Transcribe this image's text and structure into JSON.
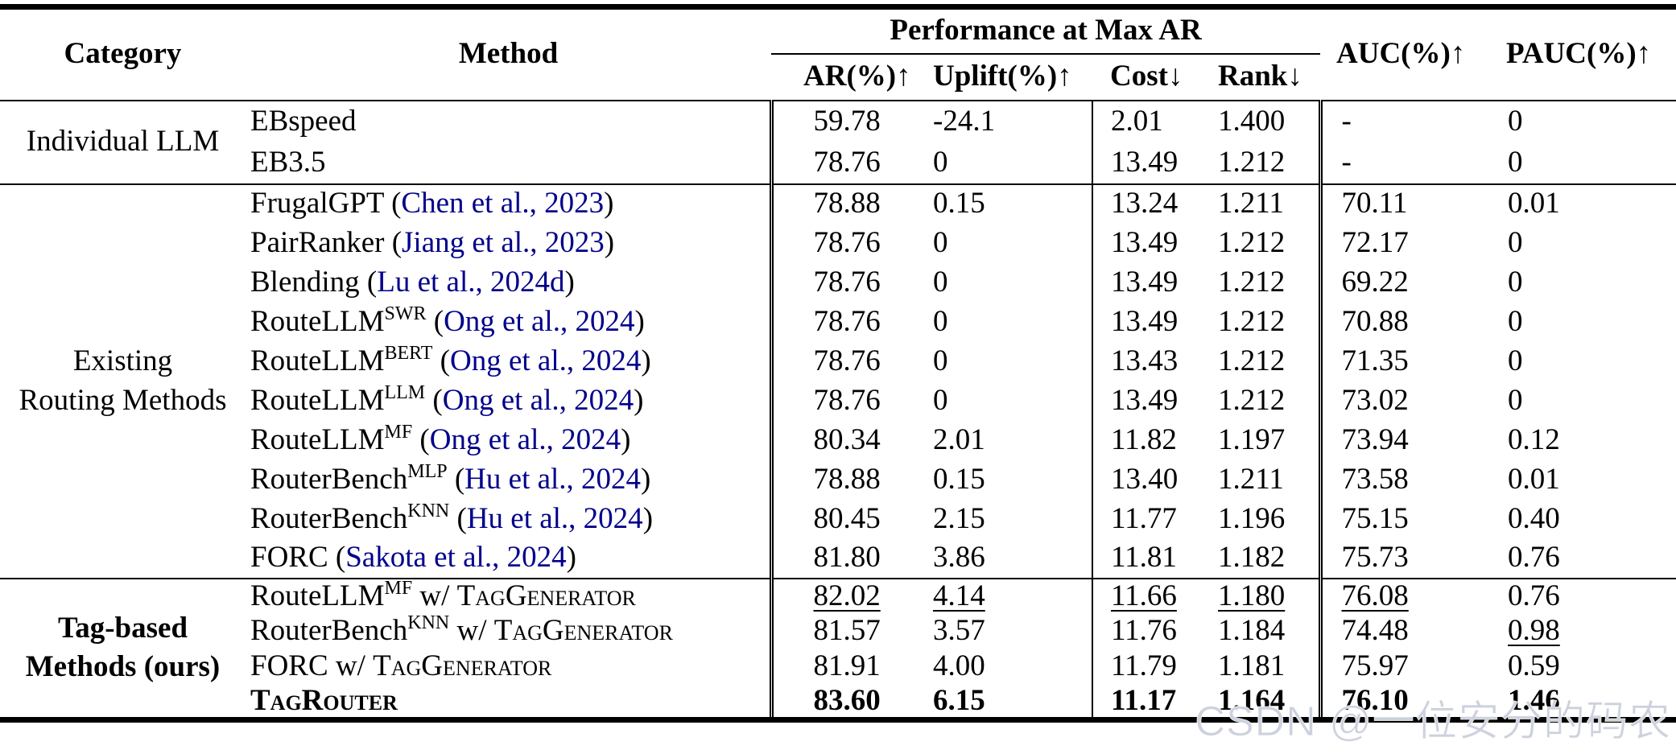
{
  "header": {
    "category": "Category",
    "method": "Method",
    "perf_group": "Performance at Max AR",
    "subcols": [
      "AR(%)↑",
      "Uplift(%)↑",
      "Cost↓",
      "Rank↓"
    ],
    "auc": "AUC(%)↑",
    "pauc": "PAUC(%)↑"
  },
  "colors": {
    "citation": "#00008B",
    "watermark": "#ccd1dd"
  },
  "watermark": "CSDN @一位安分的码农",
  "sections": [
    {
      "category_lines": [
        "Individual LLM"
      ],
      "category_bold": false,
      "rows": [
        {
          "method": [
            {
              "t": "EBspeed"
            }
          ],
          "values": [
            {
              "v": "59.78"
            },
            {
              "v": "-24.1"
            },
            {
              "v": "2.01"
            },
            {
              "v": "1.400"
            },
            {
              "v": "-"
            },
            {
              "v": "0"
            }
          ]
        },
        {
          "method": [
            {
              "t": "EB3.5"
            }
          ],
          "values": [
            {
              "v": "78.76"
            },
            {
              "v": "0"
            },
            {
              "v": "13.49"
            },
            {
              "v": "1.212"
            },
            {
              "v": "-"
            },
            {
              "v": "0"
            }
          ]
        }
      ]
    },
    {
      "category_lines": [
        "Existing",
        "Routing Methods"
      ],
      "category_bold": false,
      "rows": [
        {
          "method": [
            {
              "t": "FrugalGPT ("
            },
            {
              "t": "Chen et al., 2023",
              "s": "cite"
            },
            {
              "t": ")"
            }
          ],
          "values": [
            {
              "v": "78.88"
            },
            {
              "v": "0.15"
            },
            {
              "v": "13.24"
            },
            {
              "v": "1.211"
            },
            {
              "v": "70.11"
            },
            {
              "v": "0.01"
            }
          ]
        },
        {
          "method": [
            {
              "t": "PairRanker ("
            },
            {
              "t": "Jiang et al., 2023",
              "s": "cite"
            },
            {
              "t": ")"
            }
          ],
          "values": [
            {
              "v": "78.76"
            },
            {
              "v": "0"
            },
            {
              "v": "13.49"
            },
            {
              "v": "1.212"
            },
            {
              "v": "72.17"
            },
            {
              "v": "0"
            }
          ]
        },
        {
          "method": [
            {
              "t": "Blending ("
            },
            {
              "t": "Lu et al., 2024d",
              "s": "cite"
            },
            {
              "t": ")"
            }
          ],
          "values": [
            {
              "v": "78.76"
            },
            {
              "v": "0"
            },
            {
              "v": "13.49"
            },
            {
              "v": "1.212"
            },
            {
              "v": "69.22"
            },
            {
              "v": "0"
            }
          ]
        },
        {
          "method": [
            {
              "t": "RouteLLM"
            },
            {
              "t": "SWR",
              "s": "sup"
            },
            {
              "t": " ("
            },
            {
              "t": "Ong et al., 2024",
              "s": "cite"
            },
            {
              "t": ")"
            }
          ],
          "values": [
            {
              "v": "78.76"
            },
            {
              "v": "0"
            },
            {
              "v": "13.49"
            },
            {
              "v": "1.212"
            },
            {
              "v": "70.88"
            },
            {
              "v": "0"
            }
          ]
        },
        {
          "method": [
            {
              "t": "RouteLLM"
            },
            {
              "t": "BERT",
              "s": "sup"
            },
            {
              "t": " ("
            },
            {
              "t": "Ong et al., 2024",
              "s": "cite"
            },
            {
              "t": ")"
            }
          ],
          "values": [
            {
              "v": "78.76"
            },
            {
              "v": "0"
            },
            {
              "v": "13.43"
            },
            {
              "v": "1.212"
            },
            {
              "v": "71.35"
            },
            {
              "v": "0"
            }
          ]
        },
        {
          "method": [
            {
              "t": "RouteLLM"
            },
            {
              "t": "LLM",
              "s": "sup"
            },
            {
              "t": " ("
            },
            {
              "t": "Ong et al., 2024",
              "s": "cite"
            },
            {
              "t": ")"
            }
          ],
          "values": [
            {
              "v": "78.76"
            },
            {
              "v": "0"
            },
            {
              "v": "13.49"
            },
            {
              "v": "1.212"
            },
            {
              "v": "73.02"
            },
            {
              "v": "0"
            }
          ]
        },
        {
          "method": [
            {
              "t": "RouteLLM"
            },
            {
              "t": "MF",
              "s": "sup"
            },
            {
              "t": " ("
            },
            {
              "t": "Ong et al., 2024",
              "s": "cite"
            },
            {
              "t": ")"
            }
          ],
          "values": [
            {
              "v": "80.34"
            },
            {
              "v": "2.01"
            },
            {
              "v": "11.82"
            },
            {
              "v": "1.197"
            },
            {
              "v": "73.94"
            },
            {
              "v": "0.12"
            }
          ]
        },
        {
          "method": [
            {
              "t": "RouterBench"
            },
            {
              "t": "MLP",
              "s": "sup"
            },
            {
              "t": " ("
            },
            {
              "t": "Hu et al., 2024",
              "s": "cite"
            },
            {
              "t": ")"
            }
          ],
          "values": [
            {
              "v": "78.88"
            },
            {
              "v": "0.15"
            },
            {
              "v": "13.40"
            },
            {
              "v": "1.211"
            },
            {
              "v": "73.58"
            },
            {
              "v": "0.01"
            }
          ]
        },
        {
          "method": [
            {
              "t": "RouterBench"
            },
            {
              "t": "KNN",
              "s": "sup"
            },
            {
              "t": " ("
            },
            {
              "t": "Hu et al., 2024",
              "s": "cite"
            },
            {
              "t": ")"
            }
          ],
          "values": [
            {
              "v": "80.45"
            },
            {
              "v": "2.15"
            },
            {
              "v": "11.77"
            },
            {
              "v": "1.196"
            },
            {
              "v": "75.15"
            },
            {
              "v": "0.40"
            }
          ]
        },
        {
          "method": [
            {
              "t": "FORC ("
            },
            {
              "t": "Sakota et al., 2024",
              "s": "cite"
            },
            {
              "t": ")"
            }
          ],
          "values": [
            {
              "v": "81.80"
            },
            {
              "v": "3.86"
            },
            {
              "v": "11.81"
            },
            {
              "v": "1.182"
            },
            {
              "v": "75.73"
            },
            {
              "v": "0.76"
            }
          ]
        }
      ]
    },
    {
      "category_lines": [
        "Tag-based",
        "Methods (ours)"
      ],
      "category_bold": true,
      "rows": [
        {
          "method": [
            {
              "t": "RouteLLM"
            },
            {
              "t": "MF",
              "s": "sup"
            },
            {
              "t": " w/ "
            },
            {
              "t": "TagGenerator",
              "s": "sc"
            }
          ],
          "values": [
            {
              "v": "82.02",
              "u": true
            },
            {
              "v": "4.14",
              "u": true
            },
            {
              "v": "11.66",
              "u": true
            },
            {
              "v": "1.180",
              "u": true
            },
            {
              "v": "76.08",
              "u": true
            },
            {
              "v": "0.76"
            }
          ]
        },
        {
          "method": [
            {
              "t": "RouterBench"
            },
            {
              "t": "KNN",
              "s": "sup"
            },
            {
              "t": " w/ "
            },
            {
              "t": "TagGenerator",
              "s": "sc"
            }
          ],
          "values": [
            {
              "v": "81.57"
            },
            {
              "v": "3.57"
            },
            {
              "v": "11.76"
            },
            {
              "v": "1.184"
            },
            {
              "v": "74.48"
            },
            {
              "v": "0.98",
              "u": true
            }
          ]
        },
        {
          "method": [
            {
              "t": "FORC w/ "
            },
            {
              "t": "TagGenerator",
              "s": "sc"
            }
          ],
          "values": [
            {
              "v": "81.91"
            },
            {
              "v": "4.00"
            },
            {
              "v": "11.79"
            },
            {
              "v": "1.181"
            },
            {
              "v": "75.97"
            },
            {
              "v": "0.59"
            }
          ]
        },
        {
          "method": [
            {
              "t": "TagRouter",
              "s": "scb"
            }
          ],
          "values": [
            {
              "v": "83.60",
              "b": true
            },
            {
              "v": "6.15",
              "b": true
            },
            {
              "v": "11.17",
              "b": true
            },
            {
              "v": "1.164",
              "b": true
            },
            {
              "v": "76.10",
              "b": true
            },
            {
              "v": "1.46",
              "b": true
            }
          ]
        }
      ]
    }
  ]
}
